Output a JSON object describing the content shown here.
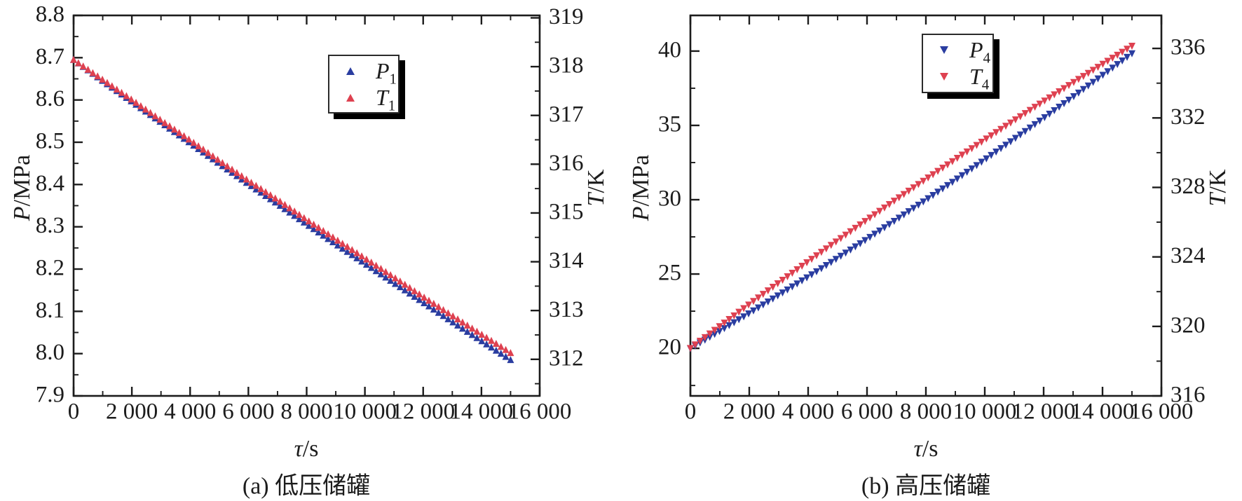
{
  "page": {
    "background": "#ffffff",
    "text_color": "#1c1c1c"
  },
  "chart_data": [
    {
      "type": "scatter",
      "caption": "(a) 低压储罐",
      "x_axis": {
        "title_var": "τ",
        "title_rest": "/s",
        "min": 0,
        "max": 16000,
        "major_step": 2000,
        "minor_step": 1000,
        "tick_values": [
          0,
          2000,
          4000,
          6000,
          8000,
          10000,
          12000,
          14000,
          16000
        ],
        "tick_labels": [
          "0",
          "2 000",
          "4 000",
          "6 000",
          "8 000",
          "10 000",
          "12 000",
          "14 000",
          "16 000"
        ]
      },
      "left_axis": {
        "title_var": "P",
        "title_rest": "/MPa",
        "min": 7.9,
        "max": 8.8,
        "minor_step": 0.05,
        "tick_values": [
          7.9,
          8.0,
          8.1,
          8.2,
          8.3,
          8.4,
          8.5,
          8.6,
          8.7,
          8.8
        ],
        "tick_labels": [
          "7.9",
          "8.0",
          "8.1",
          "8.2",
          "8.3",
          "8.4",
          "8.5",
          "8.6",
          "8.7",
          "8.8"
        ]
      },
      "right_axis": {
        "title_var": "T",
        "title_rest": "/K",
        "min": 311.25,
        "max": 319.05,
        "minor_step": 0.5,
        "tick_values": [
          312,
          313,
          314,
          315,
          316,
          317,
          318,
          319
        ],
        "tick_labels": [
          "312",
          "313",
          "314",
          "315",
          "316",
          "317",
          "318",
          "319"
        ]
      },
      "series": [
        {
          "name": "P1",
          "legend_var": "P",
          "legend_sub": "1",
          "axis": "left",
          "marker": "triangle-up",
          "color": "#2a3da0",
          "x": [
            0,
            1000,
            2000,
            3000,
            4000,
            5000,
            6000,
            7000,
            8000,
            9000,
            10000,
            11000,
            12000,
            13000,
            14000,
            15000
          ],
          "y": [
            8.695,
            8.645,
            8.596,
            8.547,
            8.498,
            8.449,
            8.401,
            8.354,
            8.306,
            8.259,
            8.213,
            8.167,
            8.121,
            8.075,
            8.03,
            7.985
          ]
        },
        {
          "name": "T1",
          "legend_var": "T",
          "legend_sub": "1",
          "axis": "right",
          "marker": "triangle-up",
          "color": "#de4150",
          "x": [
            0,
            1000,
            2000,
            3000,
            4000,
            5000,
            6000,
            7000,
            8000,
            9000,
            10000,
            11000,
            12000,
            13000,
            14000,
            15000
          ],
          "y": [
            318.14,
            317.73,
            317.32,
            316.9,
            316.49,
            316.07,
            315.66,
            315.27,
            314.86,
            314.46,
            314.07,
            313.68,
            313.28,
            312.89,
            312.51,
            312.13
          ]
        }
      ]
    },
    {
      "type": "scatter",
      "caption": "(b) 高压储罐",
      "x_axis": {
        "title_var": "τ",
        "title_rest": "/s",
        "min": 0,
        "max": 16000,
        "major_step": 2000,
        "minor_step": 1000,
        "tick_values": [
          0,
          2000,
          4000,
          6000,
          8000,
          10000,
          12000,
          14000,
          16000
        ],
        "tick_labels": [
          "0",
          "2 000",
          "4 000",
          "6 000",
          "8 000",
          "10 000",
          "12 000",
          "14 000",
          "16 000"
        ]
      },
      "left_axis": {
        "title_var": "P",
        "title_rest": "/MPa",
        "min": 16.8,
        "max": 42.4,
        "minor_step": 2.5,
        "tick_values": [
          20,
          25,
          30,
          35,
          40
        ],
        "tick_labels": [
          "20",
          "25",
          "30",
          "35",
          "40"
        ]
      },
      "right_axis": {
        "title_var": "T",
        "title_rest": "/K",
        "min": 316,
        "max": 337.9,
        "minor_step": 2,
        "tick_values": [
          316,
          320,
          324,
          328,
          332,
          336
        ],
        "tick_labels": [
          "316",
          "320",
          "324",
          "328",
          "332",
          "336"
        ]
      },
      "series": [
        {
          "name": "P4",
          "legend_var": "P",
          "legend_sub": "4",
          "axis": "left",
          "marker": "triangle-down",
          "color": "#2a3da0",
          "x": [
            0,
            1000,
            2000,
            3000,
            4000,
            5000,
            6000,
            7000,
            8000,
            9000,
            10000,
            11000,
            12000,
            13000,
            14000,
            15000
          ],
          "y": [
            20.0,
            21.17,
            22.37,
            23.59,
            24.82,
            26.08,
            27.36,
            28.67,
            29.99,
            31.33,
            32.7,
            34.09,
            35.5,
            36.93,
            38.38,
            39.85
          ]
        },
        {
          "name": "T4",
          "legend_var": "T",
          "legend_sub": "4",
          "axis": "right",
          "marker": "triangle-down",
          "color": "#de4150",
          "x": [
            0,
            1000,
            2000,
            3000,
            4000,
            5000,
            6000,
            7000,
            8000,
            9000,
            10000,
            11000,
            12000,
            13000,
            14000,
            15000
          ],
          "y": [
            318.75,
            320.02,
            321.28,
            322.52,
            323.74,
            324.95,
            326.14,
            327.32,
            328.48,
            329.62,
            330.75,
            331.86,
            332.96,
            334.04,
            335.1,
            336.15
          ]
        }
      ]
    }
  ]
}
